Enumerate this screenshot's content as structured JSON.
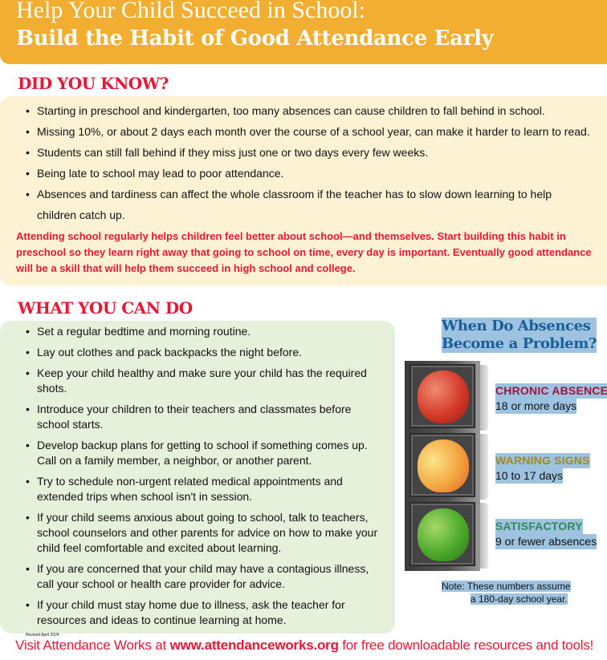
{
  "header": {
    "title_line1": "Help Your Child Succeed in School:",
    "title_line2": "Build the Habit of Good Attendance Early"
  },
  "did_you_know": {
    "heading": "DID YOU KNOW?",
    "bullets": [
      "Starting in preschool and kindergarten, too many absences can cause children to fall behind in school.",
      "Missing 10%, or about 2 days each month over the course of a school year, can make it harder to learn to read.",
      "Students can still fall behind if they miss just one or two days every few weeks.",
      "Being late to school may lead to poor attendance.",
      "Absences and tardiness can affect the whole classroom if the teacher has to slow down learning to help children catch up."
    ],
    "callout": "Attending school regularly helps children feel better about school—and themselves. Start building this habit in preschool so they learn right away that going to school on time, every day is important. Eventually good attendance will be a skill that will help them succeed in high school and college."
  },
  "what_you_can_do": {
    "heading": "WHAT YOU CAN DO",
    "bullets": [
      "Set a regular bedtime and morning routine.",
      "Lay out clothes and pack backpacks the night before.",
      "Keep your child healthy and make sure your child has the required shots.",
      "Introduce your children to their teachers and classmates before school starts.",
      "Develop backup plans for getting to school if something comes up. Call on a family member, a neighbor, or another parent.",
      "Try to schedule non-urgent related medical appointments and extended trips when school isn't in session.",
      "If your child seems anxious about going to school, talk to teachers, school counselors and other parents for advice on how to make your child feel comfortable and excited about learning.",
      "If you are concerned that your child may have a contagious illness, call your school or health care provider for advice.",
      "If your child must stay home due to illness, ask the teacher for resources and ideas to continue learning at home."
    ]
  },
  "panel": {
    "title_line1": "When Do Absences",
    "title_line2": "Become a Problem?",
    "levels": [
      {
        "label": "CHRONIC ABSENCE",
        "detail": "18 or more days",
        "color": "#A0153E",
        "apple": "red"
      },
      {
        "label": "WARNING SIGNS",
        "detail": "10 to 17 days",
        "color": "#A08A1A",
        "apple": "yellow"
      },
      {
        "label": "SATISFACTORY",
        "detail": "9 or fewer absences",
        "color": "#2E8B57",
        "apple": "green"
      }
    ],
    "note_line1": "Note: These numbers assume",
    "note_line2": "a 180-day school year."
  },
  "revised": "Revised April 2024",
  "footer": {
    "pre": "Visit Attendance Works at ",
    "link": "www.attendanceworks.org",
    "post": " for free downloadable resources and tools!"
  },
  "colors": {
    "header": "#F2AE30",
    "accent_red": "#E31937",
    "panel_blue": "#1A5E9A"
  }
}
